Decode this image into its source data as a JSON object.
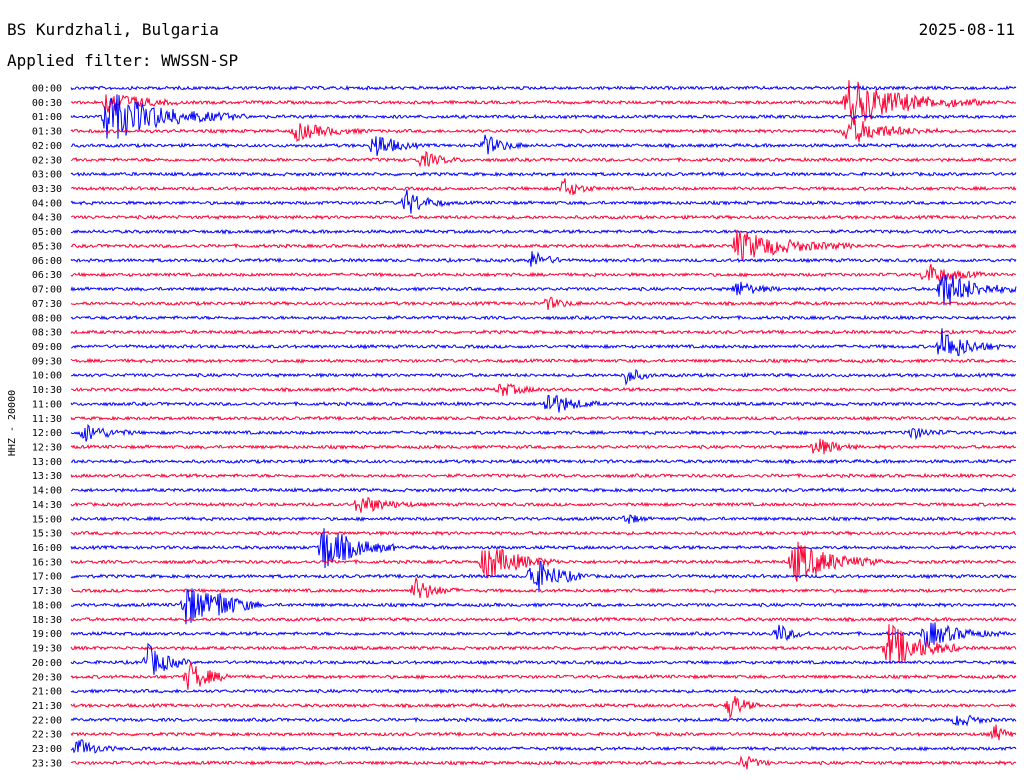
{
  "header": {
    "station": "BS Kurdzhali, Bulgaria",
    "filter": "Applied filter: WWSSN-SP",
    "date": "2025-08-11"
  },
  "colors": {
    "trace_a": "#0000ff",
    "trace_b": "#ff0033",
    "text": "#000000",
    "background": "#ffffff"
  },
  "chart_data": {
    "type": "line",
    "title": "BS Kurdzhali, Bulgaria",
    "subtitle": "Applied filter: WWSSN-SP",
    "date": "2025-08-11",
    "ylabel": "HHZ - 20000",
    "row_interval_minutes": 30,
    "row_labels": [
      "00:00",
      "00:30",
      "01:00",
      "01:30",
      "02:00",
      "02:30",
      "03:00",
      "03:30",
      "04:00",
      "04:30",
      "05:00",
      "05:30",
      "06:00",
      "06:30",
      "07:00",
      "07:30",
      "08:00",
      "08:30",
      "09:00",
      "09:30",
      "10:00",
      "10:30",
      "11:00",
      "11:30",
      "12:00",
      "12:30",
      "13:00",
      "13:30",
      "14:00",
      "14:30",
      "15:00",
      "15:30",
      "16:00",
      "16:30",
      "17:00",
      "17:30",
      "18:00",
      "18:30",
      "19:00",
      "19:30",
      "20:00",
      "20:30",
      "21:00",
      "21:30",
      "22:00",
      "22:30",
      "23:00",
      "23:30"
    ],
    "events": [
      {
        "row": 1,
        "minute": 1.0,
        "duration": 2.5,
        "amp": 12
      },
      {
        "row": 1,
        "minute": 24.5,
        "duration": 4.5,
        "amp": 24
      },
      {
        "row": 2,
        "minute": 1.0,
        "duration": 4.5,
        "amp": 26
      },
      {
        "row": 3,
        "minute": 24.5,
        "duration": 3.0,
        "amp": 14
      },
      {
        "row": 4,
        "minute": 9.5,
        "duration": 1.5,
        "amp": 14
      },
      {
        "row": 3,
        "minute": 7.0,
        "duration": 2.5,
        "amp": 9
      },
      {
        "row": 4,
        "minute": 13.0,
        "duration": 1.5,
        "amp": 10
      },
      {
        "row": 5,
        "minute": 11.0,
        "duration": 1.5,
        "amp": 8
      },
      {
        "row": 8,
        "minute": 10.5,
        "duration": 1.5,
        "amp": 13
      },
      {
        "row": 7,
        "minute": 15.5,
        "duration": 1.2,
        "amp": 10
      },
      {
        "row": 11,
        "minute": 21.0,
        "duration": 4.0,
        "amp": 16
      },
      {
        "row": 12,
        "minute": 14.5,
        "duration": 1.2,
        "amp": 9
      },
      {
        "row": 13,
        "minute": 27.0,
        "duration": 2.0,
        "amp": 12
      },
      {
        "row": 14,
        "minute": 27.5,
        "duration": 2.5,
        "amp": 20
      },
      {
        "row": 15,
        "minute": 15.0,
        "duration": 1.2,
        "amp": 6
      },
      {
        "row": 14,
        "minute": 21.0,
        "duration": 1.5,
        "amp": 8
      },
      {
        "row": 18,
        "minute": 27.5,
        "duration": 2.0,
        "amp": 18
      },
      {
        "row": 20,
        "minute": 17.5,
        "duration": 1.0,
        "amp": 9
      },
      {
        "row": 21,
        "minute": 13.5,
        "duration": 1.5,
        "amp": 7
      },
      {
        "row": 22,
        "minute": 15.0,
        "duration": 1.8,
        "amp": 13
      },
      {
        "row": 24,
        "minute": 0.3,
        "duration": 1.8,
        "amp": 9
      },
      {
        "row": 24,
        "minute": 26.5,
        "duration": 1.5,
        "amp": 6
      },
      {
        "row": 25,
        "minute": 23.5,
        "duration": 1.5,
        "amp": 10
      },
      {
        "row": 29,
        "minute": 9.0,
        "duration": 2.0,
        "amp": 10
      },
      {
        "row": 30,
        "minute": 17.5,
        "duration": 0.8,
        "amp": 6
      },
      {
        "row": 32,
        "minute": 7.8,
        "duration": 2.5,
        "amp": 26
      },
      {
        "row": 33,
        "minute": 13.0,
        "duration": 2.5,
        "amp": 20
      },
      {
        "row": 34,
        "minute": 14.5,
        "duration": 2.0,
        "amp": 20
      },
      {
        "row": 33,
        "minute": 22.8,
        "duration": 3.0,
        "amp": 22
      },
      {
        "row": 35,
        "minute": 10.8,
        "duration": 1.5,
        "amp": 12
      },
      {
        "row": 36,
        "minute": 3.5,
        "duration": 2.5,
        "amp": 22
      },
      {
        "row": 36,
        "minute": 4.5,
        "duration": 1.5,
        "amp": 8
      },
      {
        "row": 38,
        "minute": 22.3,
        "duration": 1.3,
        "amp": 9
      },
      {
        "row": 38,
        "minute": 27.0,
        "duration": 2.5,
        "amp": 14
      },
      {
        "row": 39,
        "minute": 25.8,
        "duration": 2.5,
        "amp": 26
      },
      {
        "row": 40,
        "minute": 2.3,
        "duration": 1.5,
        "amp": 18
      },
      {
        "row": 41,
        "minute": 3.6,
        "duration": 1.6,
        "amp": 16
      },
      {
        "row": 43,
        "minute": 20.8,
        "duration": 1.0,
        "amp": 14
      },
      {
        "row": 44,
        "minute": 28.0,
        "duration": 1.3,
        "amp": 7
      },
      {
        "row": 45,
        "minute": 29.2,
        "duration": 0.8,
        "amp": 9
      },
      {
        "row": 46,
        "minute": 0.1,
        "duration": 1.3,
        "amp": 10
      },
      {
        "row": 47,
        "minute": 21.2,
        "duration": 1.0,
        "amp": 8
      }
    ]
  }
}
